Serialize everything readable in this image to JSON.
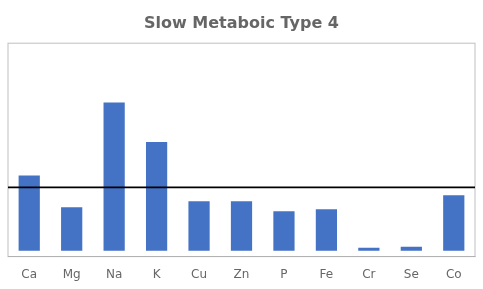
{
  "chart_data": {
    "type": "bar",
    "title": "Slow Metaboic Type 4",
    "categories": [
      "Ca",
      "Mg",
      "Na",
      "K",
      "Cu",
      "Zn",
      "P",
      "Fe",
      "Cr",
      "Se",
      "Co"
    ],
    "values": [
      3.8,
      2.2,
      7.5,
      5.5,
      2.5,
      2.5,
      2.0,
      2.1,
      0.15,
      0.2,
      2.8
    ],
    "color": "#4472C4",
    "ylim": [
      -0.3,
      10.5
    ],
    "reference_line": {
      "value": 3.2,
      "color": "#000000"
    },
    "grid": false,
    "tick_labels": "x"
  }
}
